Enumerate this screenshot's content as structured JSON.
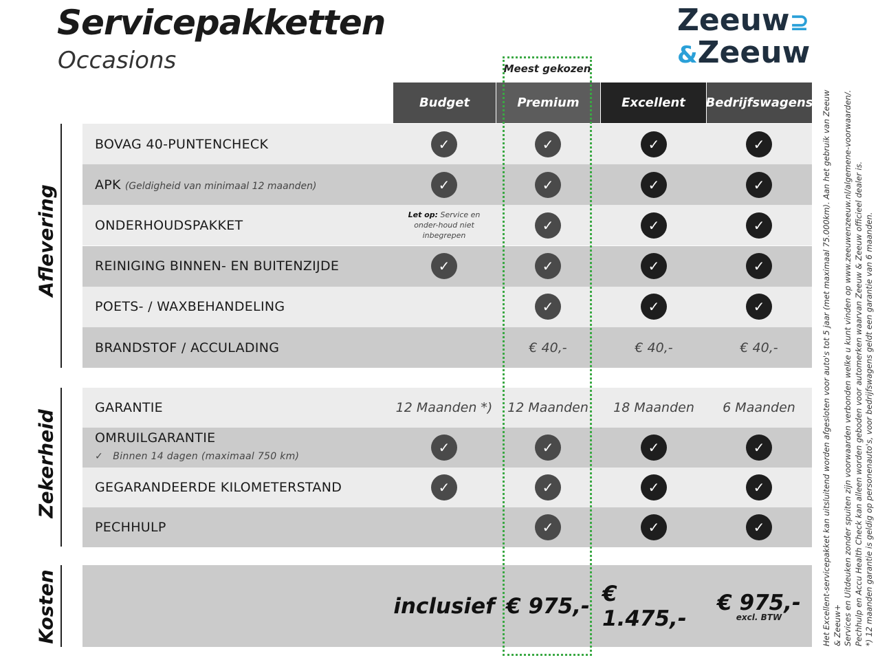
{
  "header": {
    "title": "Servicepakketten",
    "subtitle": "Occasions",
    "logo": "Zeeuw & Zeeuw",
    "highlight": "Meest gekozen"
  },
  "columns": [
    "Budget",
    "Premium",
    "Excellent",
    "Bedrijfswagens"
  ],
  "sections": {
    "aflevering": "Aflevering",
    "zekerheid": "Zekerheid",
    "kosten": "Kosten"
  },
  "aflevering_rows": [
    {
      "label": "BOVAG 40-PUNTENCHECK",
      "cells": [
        "check",
        "check",
        "check",
        "check"
      ]
    },
    {
      "label": "APK",
      "note": "(Geldigheid van minimaal 12 maanden)",
      "cells": [
        "check",
        "check",
        "check",
        "check"
      ]
    },
    {
      "label": "ONDERHOUDSPAKKET",
      "cells": [
        "note",
        "check",
        "check",
        "check"
      ]
    },
    {
      "label": "REINIGING BINNEN- EN BUITENZIJDE",
      "cells": [
        "check",
        "check",
        "check",
        "check"
      ]
    },
    {
      "label": "POETS- / WAXBEHANDELING",
      "cells": [
        "",
        "check",
        "check",
        "check"
      ]
    },
    {
      "label": "BRANDSTOF / ACCULADING",
      "cells": [
        "",
        "€ 40,-",
        "€ 40,-",
        "€ 40,-"
      ]
    }
  ],
  "budget_note": {
    "bold": "Let op:",
    "text": "Service en onder-houd niet inbegrepen"
  },
  "zekerheid_rows": [
    {
      "label": "GARANTIE",
      "cells": [
        "12 Maanden *)",
        "12 Maanden",
        "18 Maanden",
        "6 Maanden"
      ]
    },
    {
      "label": "OMRUILGARANTIE",
      "sub": "Binnen 14 dagen (maximaal 750 km)",
      "cells": [
        "check",
        "check",
        "check",
        "check"
      ]
    },
    {
      "label": "GEGARANDEERDE KILOMETERSTAND",
      "cells": [
        "check",
        "check",
        "check",
        "check"
      ]
    },
    {
      "label": "PECHHULP",
      "cells": [
        "",
        "check",
        "check",
        "check"
      ]
    }
  ],
  "kosten": {
    "cells": [
      "inclusief",
      "€ 975,-",
      "€ 1.475,-",
      "€ 975,-"
    ],
    "bedrijf_note": "excl. BTW"
  },
  "footnotes": [
    "Het Excellent-servicepakket kan uitsluitend worden afgesloten voor auto's tot 5 jaar (met maximaal 75.000km). Aan het gebruik van Zeeuw & Zeeuw+",
    "Services en Uitdeuken zonder spuiten zijn voorwaarden verbonden welke u kunt vinden op www.zeeuwenzeeuw.nl/algemene-voorwaarden/.",
    "Pechhulp en Accu Health Check kan alleen worden geboden voor automerken waarvan Zeeuw & Zeeuw officieel dealer is.",
    "*) 12 maanden garantie is geldig op personenauto's, voor bedrijfswagens geldt een garantie van 6 maanden."
  ],
  "colors": {
    "accent_green": "#3aa843",
    "logo_blue": "#2aa0d8",
    "logo_dark": "#1f2f3f"
  }
}
